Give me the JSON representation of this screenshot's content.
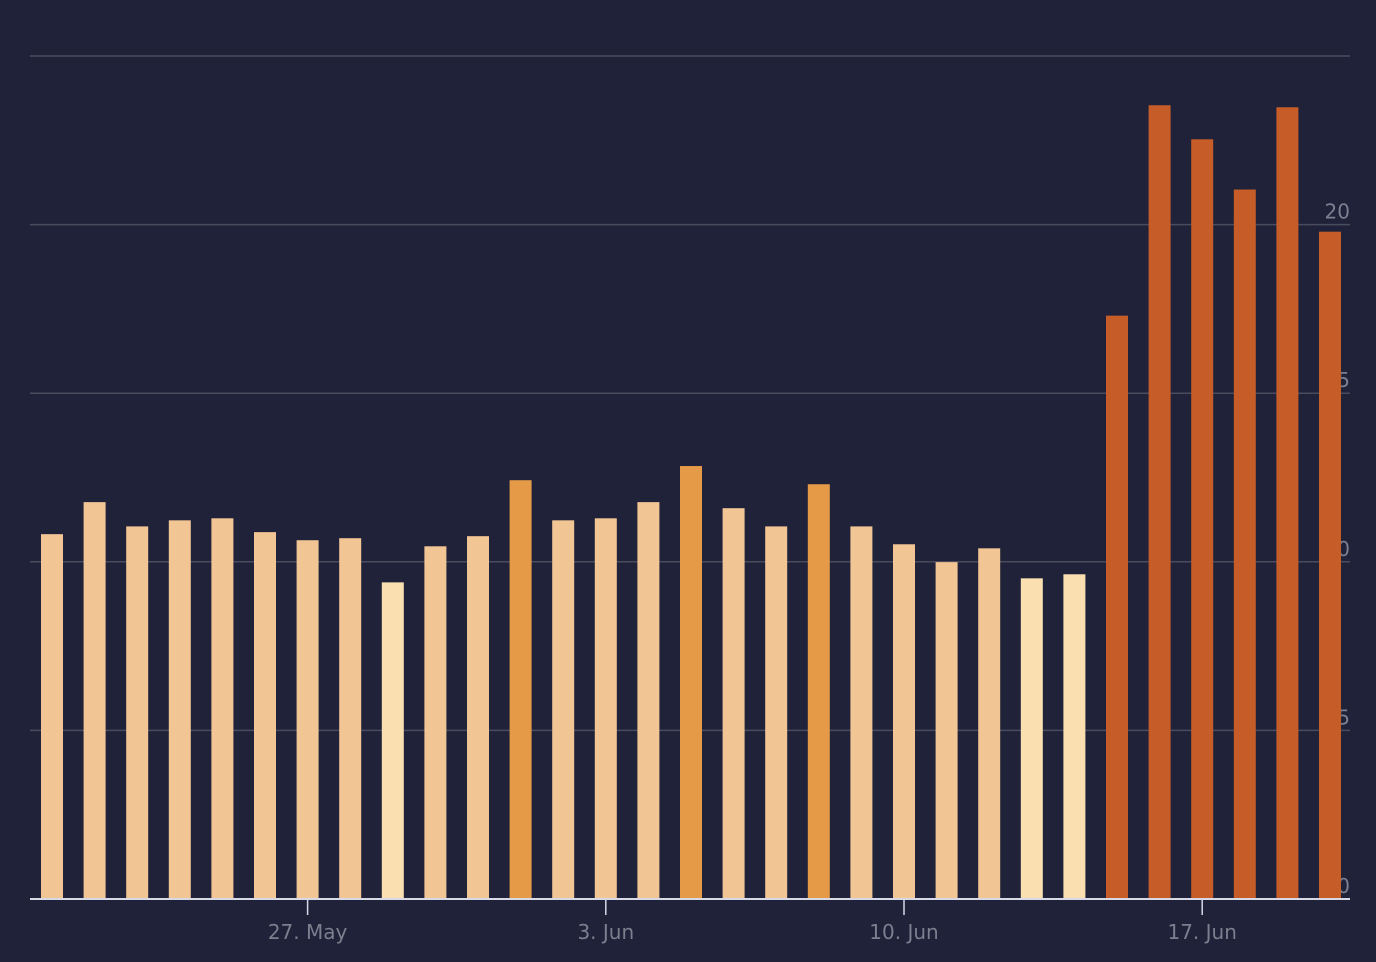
{
  "chart_data": {
    "type": "bar",
    "categories": [
      null,
      null,
      null,
      null,
      null,
      null,
      "27. May",
      null,
      null,
      null,
      null,
      null,
      null,
      "3. Jun",
      null,
      null,
      null,
      null,
      null,
      null,
      "10. Jun",
      null,
      null,
      null,
      null,
      null,
      null,
      "17. Jun",
      null,
      null,
      null
    ],
    "values": [
      10.82,
      11.77,
      11.05,
      11.23,
      11.29,
      10.88,
      10.64,
      10.7,
      9.39,
      10.46,
      10.76,
      12.42,
      11.23,
      11.29,
      11.77,
      12.84,
      11.59,
      11.05,
      12.3,
      11.05,
      10.52,
      9.99,
      10.4,
      9.51,
      9.63,
      17.3,
      23.54,
      22.53,
      21.04,
      23.48,
      19.79
    ],
    "colors": [
      "#f2c594",
      "#f2c594",
      "#f2c594",
      "#f2c594",
      "#f2c594",
      "#f2c594",
      "#f2c594",
      "#f2c594",
      "#fae0b0",
      "#f2c594",
      "#f2c594",
      "#e59a48",
      "#f2c594",
      "#f2c594",
      "#f2c594",
      "#e59a48",
      "#f2c594",
      "#f2c594",
      "#e59a48",
      "#f2c594",
      "#f2c594",
      "#f2c594",
      "#f2c594",
      "#fae0b0",
      "#fae0b0",
      "#c65c27",
      "#c65c27",
      "#c65c27",
      "#c65c27",
      "#c65c27",
      "#c65c27"
    ],
    "ylim": [
      0,
      25
    ],
    "yticks": [
      0,
      5,
      10,
      15,
      20
    ],
    "grid": true
  }
}
